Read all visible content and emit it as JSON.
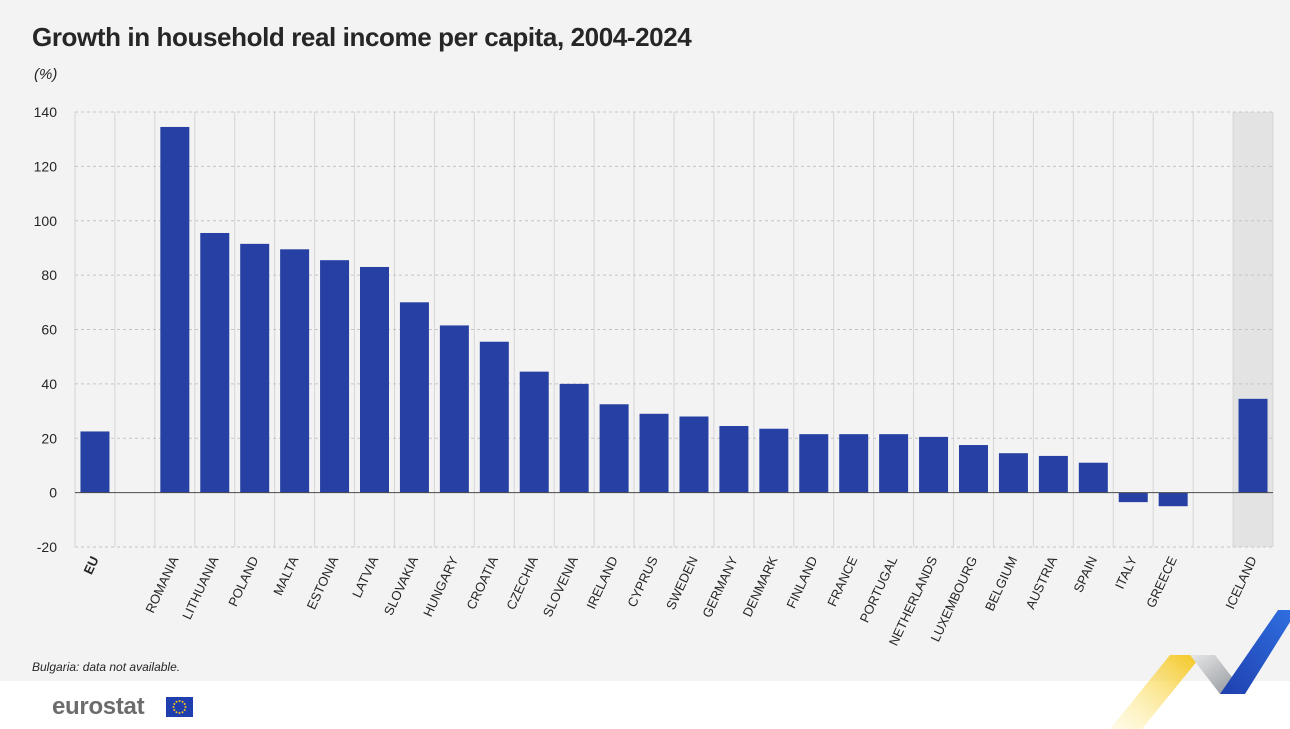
{
  "title": "Growth in household real income per capita, 2004-2024",
  "unit_label": "(%)",
  "footnote": "Bulgaria: data not available.",
  "brand": {
    "wordmark": "eurostat",
    "flag_icon": "eu-flag-icon"
  },
  "colors": {
    "bar": "#2641a3",
    "highlight_band": "#e3e3e3",
    "background": "#f3f3f3",
    "logo_yellow": "#f5c518",
    "logo_blue": "#1f3fae",
    "logo_gray": "#9aa0a6"
  },
  "chart_data": {
    "type": "bar",
    "title": "Growth in household real income per capita, 2004-2024",
    "ylabel": "(%)",
    "xlabel": "",
    "ylim": [
      -20,
      140
    ],
    "yticks": [
      -20,
      0,
      20,
      40,
      60,
      80,
      100,
      120,
      140
    ],
    "grid": true,
    "legend": "none",
    "highlighted_category": "ICELAND",
    "categories": [
      "EU",
      "ROMANIA",
      "LITHUANIA",
      "POLAND",
      "MALTA",
      "ESTONIA",
      "LATVIA",
      "SLOVAKIA",
      "HUNGARY",
      "CROATIA",
      "CZECHIA",
      "SLOVENIA",
      "IRELAND",
      "CYPRUS",
      "SWEDEN",
      "GERMANY",
      "DENMARK",
      "FINLAND",
      "FRANCE",
      "PORTUGAL",
      "NETHERLANDS",
      "LUXEMBOURG",
      "BELGIUM",
      "AUSTRIA",
      "SPAIN",
      "ITALY",
      "GREECE",
      "ICELAND"
    ],
    "values": [
      22.5,
      134.5,
      95.5,
      91.5,
      89.5,
      85.5,
      83,
      70,
      61.5,
      55.5,
      44.5,
      40,
      32.5,
      29,
      28,
      24.5,
      23.5,
      21.5,
      21.5,
      21.5,
      20.5,
      17.5,
      14.5,
      13.5,
      11,
      -3.5,
      -5,
      34.5
    ],
    "bold_categories": [
      "EU"
    ]
  }
}
